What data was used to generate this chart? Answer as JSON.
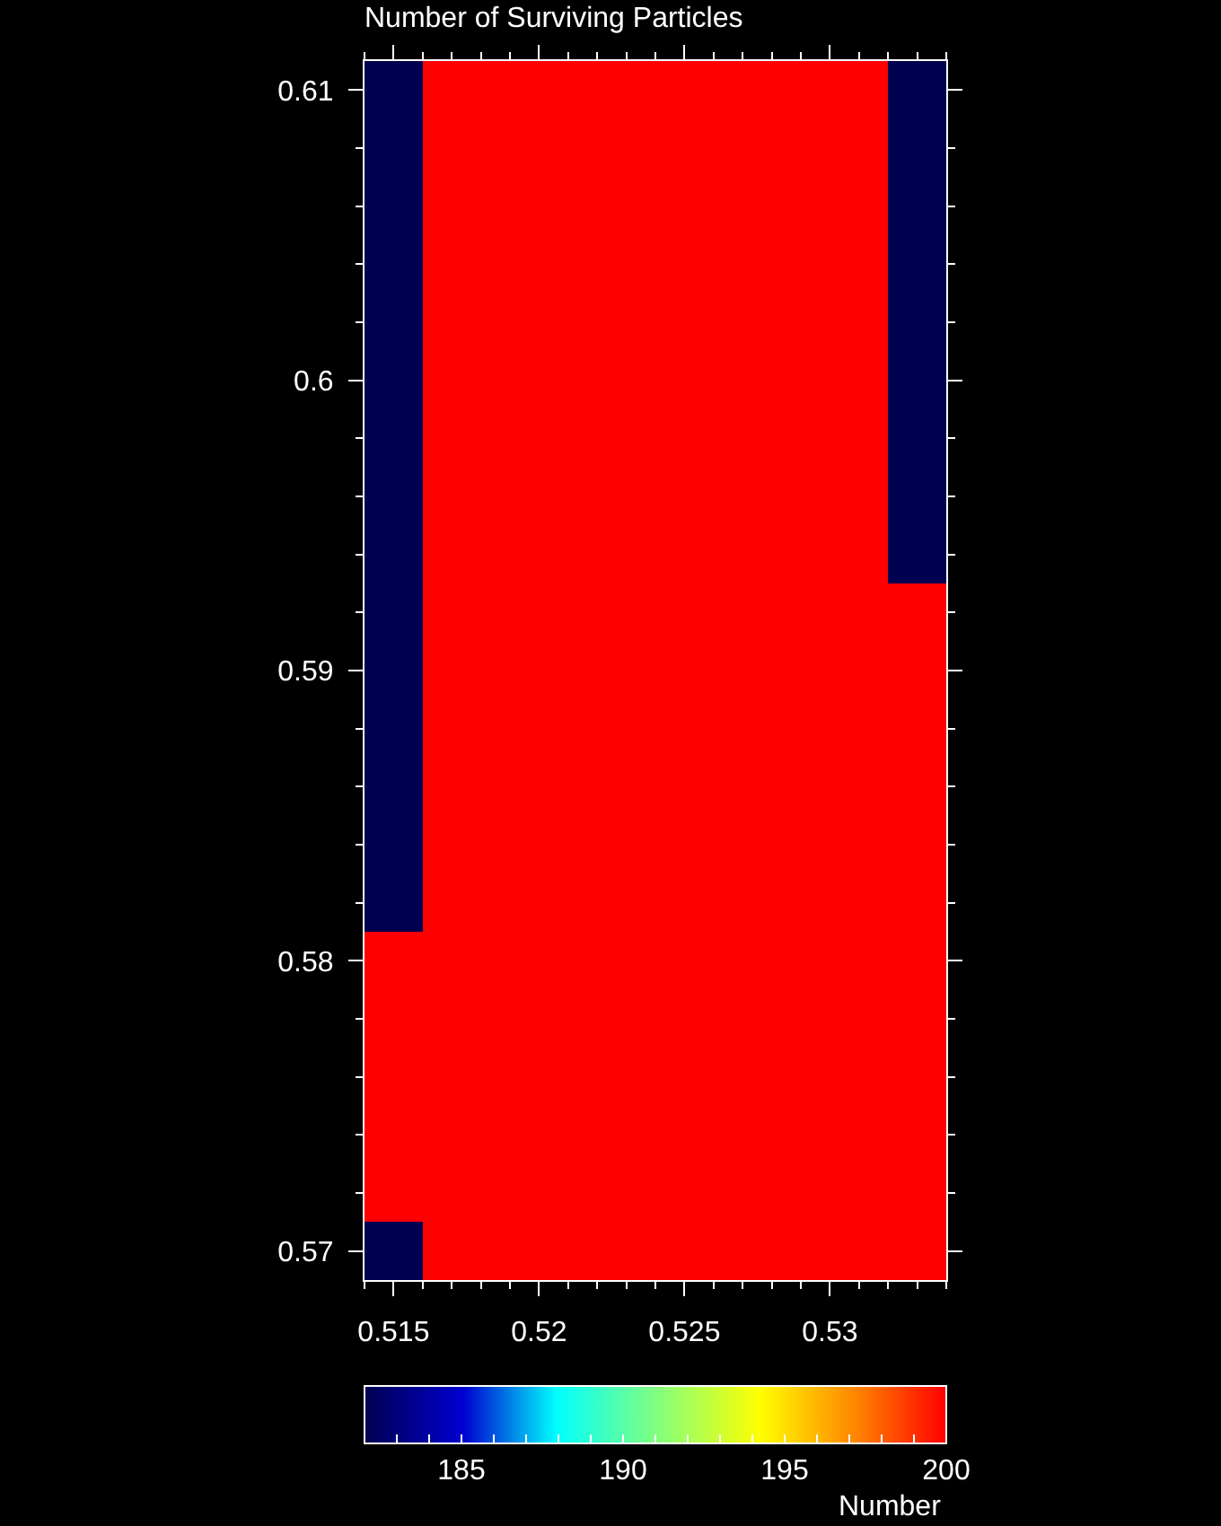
{
  "chart_data": {
    "type": "heatmap",
    "title": "Number of Surviving Particles",
    "clabel": "Number",
    "x": [
      0.515,
      0.517,
      0.519,
      0.521,
      0.523,
      0.525,
      0.527,
      0.529,
      0.531,
      0.533
    ],
    "cells": [
      [
        182,
        200,
        200,
        200,
        200,
        200,
        200,
        200,
        200,
        182
      ],
      [
        182,
        200,
        200,
        200,
        200,
        200,
        200,
        200,
        200,
        182
      ],
      [
        182,
        200,
        200,
        200,
        200,
        200,
        200,
        200,
        200,
        182
      ],
      [
        182,
        200,
        200,
        200,
        200,
        200,
        200,
        200,
        200,
        182
      ],
      [
        182,
        200,
        200,
        200,
        200,
        200,
        200,
        200,
        200,
        182
      ],
      [
        182,
        200,
        200,
        200,
        200,
        200,
        200,
        200,
        200,
        182
      ],
      [
        182,
        200,
        200,
        200,
        200,
        200,
        200,
        200,
        200,
        182
      ],
      [
        182,
        200,
        200,
        200,
        200,
        200,
        200,
        200,
        200,
        182
      ],
      [
        182,
        200,
        200,
        200,
        200,
        200,
        200,
        200,
        200,
        182
      ],
      [
        182,
        200,
        200,
        200,
        200,
        200,
        200,
        200,
        200,
        200
      ],
      [
        182,
        200,
        200,
        200,
        200,
        200,
        200,
        200,
        200,
        200
      ],
      [
        182,
        200,
        200,
        200,
        200,
        200,
        200,
        200,
        200,
        200
      ],
      [
        182,
        200,
        200,
        200,
        200,
        200,
        200,
        200,
        200,
        200
      ],
      [
        182,
        200,
        200,
        200,
        200,
        200,
        200,
        200,
        200,
        200
      ],
      [
        182,
        200,
        200,
        200,
        200,
        200,
        200,
        200,
        200,
        200
      ],
      [
        200,
        200,
        200,
        200,
        200,
        200,
        200,
        200,
        200,
        200
      ],
      [
        200,
        200,
        200,
        200,
        200,
        200,
        200,
        200,
        200,
        200
      ],
      [
        200,
        200,
        200,
        200,
        200,
        200,
        200,
        200,
        200,
        200
      ],
      [
        200,
        200,
        200,
        200,
        200,
        200,
        200,
        200,
        200,
        200
      ],
      [
        200,
        200,
        200,
        200,
        200,
        200,
        200,
        200,
        200,
        200
      ],
      [
        182,
        200,
        200,
        200,
        200,
        200,
        200,
        200,
        200,
        200
      ]
    ],
    "xlim": [
      0.514,
      0.534
    ],
    "xticks": [
      {
        "value": 0.514,
        "label": null
      },
      0.515,
      {
        "value": 0.516,
        "label": null
      },
      {
        "value": 0.517,
        "label": null
      },
      {
        "value": 0.518,
        "label": null
      },
      {
        "value": 0.519,
        "label": null
      },
      0.52,
      {
        "value": 0.521,
        "label": null
      },
      {
        "value": 0.522,
        "label": null
      },
      {
        "value": 0.523,
        "label": null
      },
      {
        "value": 0.524,
        "label": null
      },
      0.525,
      {
        "value": 0.526,
        "label": null
      },
      {
        "value": 0.527,
        "label": null
      },
      {
        "value": 0.528,
        "label": null
      },
      {
        "value": 0.529,
        "label": null
      },
      0.53,
      {
        "value": 0.531,
        "label": null
      },
      {
        "value": 0.532,
        "label": null
      },
      {
        "value": 0.533,
        "label": null
      },
      {
        "value": 0.534,
        "label": null
      }
    ],
    "ylim": [
      0.569,
      0.611
    ],
    "yticks": [
      0.57,
      {
        "value": 0.572,
        "label": null
      },
      {
        "value": 0.574,
        "label": null
      },
      {
        "value": 0.576,
        "label": null
      },
      {
        "value": 0.578,
        "label": null
      },
      0.58,
      {
        "value": 0.582,
        "label": null
      },
      {
        "value": 0.584,
        "label": null
      },
      {
        "value": 0.586,
        "label": null
      },
      {
        "value": 0.588,
        "label": null
      },
      0.59,
      {
        "value": 0.592,
        "label": null
      },
      {
        "value": 0.594,
        "label": null
      },
      {
        "value": 0.596,
        "label": null
      },
      {
        "value": 0.598,
        "label": null
      },
      0.6,
      {
        "value": 0.602,
        "label": null
      },
      {
        "value": 0.604,
        "label": null
      },
      {
        "value": 0.606,
        "label": null
      },
      {
        "value": 0.608,
        "label": null
      },
      0.61
    ],
    "clim": [
      182,
      200
    ],
    "cticks": [
      {
        "value": 183,
        "label": null
      },
      {
        "value": 184,
        "label": null
      },
      185,
      {
        "value": 186,
        "label": null
      },
      {
        "value": 187,
        "label": null
      },
      {
        "value": 188,
        "label": null
      },
      {
        "value": 189,
        "label": null
      },
      190,
      {
        "value": 191,
        "label": null
      },
      {
        "value": 192,
        "label": null
      },
      {
        "value": 193,
        "label": null
      },
      {
        "value": 194,
        "label": null
      },
      195,
      {
        "value": 196,
        "label": null
      },
      {
        "value": 197,
        "label": null
      },
      {
        "value": 198,
        "label": null
      },
      {
        "value": 199,
        "label": null
      },
      200
    ]
  }
}
